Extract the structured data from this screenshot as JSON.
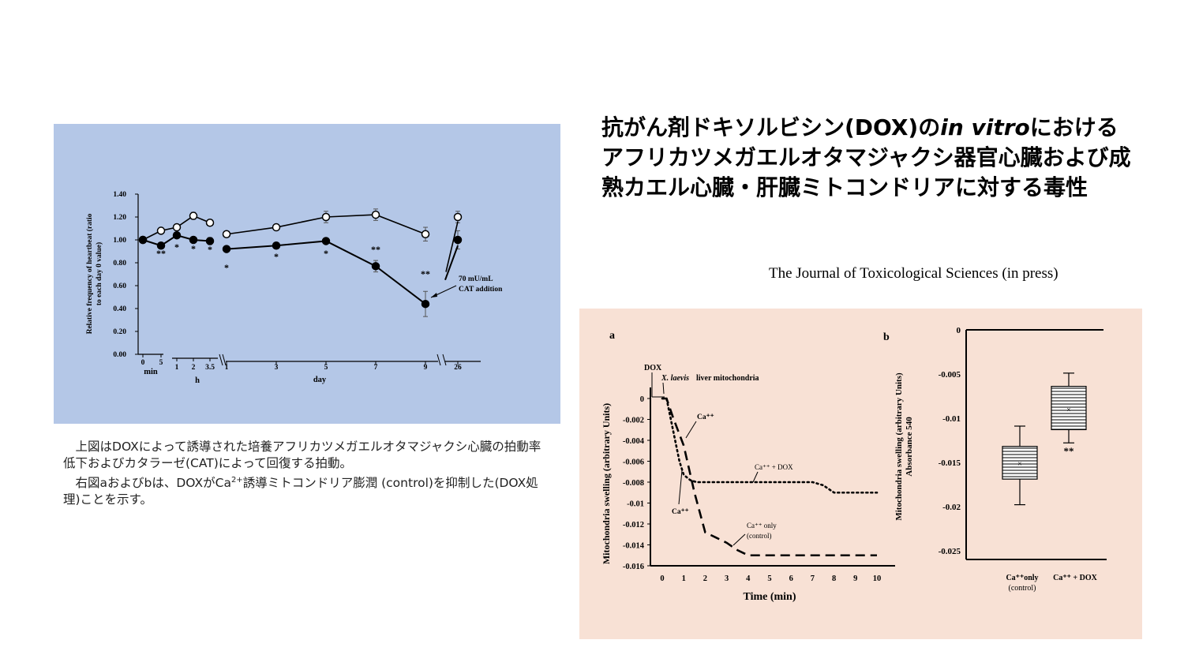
{
  "slide": {
    "title_part1": "抗がん剤ドキソルビシン(DOX)の",
    "title_italic": "in vitro",
    "title_part2": "における アフリカツメガエルオタマジャクシ器官心臓および成熟カエル心臓・肝臓ミトコンドリアに対する毒性",
    "journal": "The Journal of Toxicological Sciences (in press)",
    "caption_line1": "上図はDOXによって誘導された培養アフリカツメガエルオタマジャクシ心臓の拍動率低下およびカタラーゼ(CAT)によって回復する拍動。",
    "caption_line2_pre": "右図aおよびbは、DOXがCa",
    "caption_line2_sup": "2+",
    "caption_line2_post": "誘導ミトコンドリア膨潤 (control)を抑制した(DOX処理)ことを示す。"
  },
  "chart_data": [
    {
      "type": "line",
      "ylabel": "Relative frequency of heartbeat (ratio to each day 0 value)",
      "ylim": [
        0,
        1.4
      ],
      "yticks": [
        "0.00",
        "0.20",
        "0.40",
        "0.60",
        "0.80",
        "1.00",
        "1.20",
        "1.40"
      ],
      "x_groups": [
        {
          "label": "min",
          "ticks": [
            "0",
            "5"
          ]
        },
        {
          "label": "h",
          "ticks": [
            "1",
            "2",
            "3.5"
          ]
        },
        {
          "label": "day",
          "ticks": [
            "1",
            "3",
            "5",
            "7",
            "9"
          ]
        },
        {
          "label": "",
          "ticks": [
            "26"
          ]
        }
      ],
      "x": [
        "0 min",
        "5 min",
        "1 h",
        "2 h",
        "3.5 h",
        "1 day",
        "3 day",
        "5 day",
        "7 day",
        "9 day",
        "26 day"
      ],
      "series": [
        {
          "marker": "open",
          "values": [
            1.0,
            1.08,
            1.11,
            1.21,
            1.15,
            1.05,
            1.11,
            1.2,
            1.22,
            1.05,
            1.2
          ]
        },
        {
          "marker": "filled",
          "values": [
            1.0,
            0.95,
            1.04,
            1.0,
            0.99,
            0.92,
            0.95,
            0.99,
            0.77,
            0.44,
            1.0
          ]
        }
      ],
      "significance": [
        "",
        "**",
        "*",
        "*",
        "*",
        "*",
        "*",
        "*",
        "**",
        "**",
        ""
      ],
      "annotation": "70 mU/mL CAT addition"
    },
    {
      "type": "line",
      "panel": "a",
      "xlabel": "Time (min)",
      "ylabel": "Mitochondria swelling (arbitrary Units)",
      "xlim": [
        0,
        10
      ],
      "ylim": [
        -0.016,
        0
      ],
      "yticks": [
        "0",
        "-0.002",
        "-0.004",
        "-0.006",
        "-0.008",
        "-0.01",
        "-0.012",
        "-0.014",
        "-0.016"
      ],
      "xticks": [
        "0",
        "1",
        "2",
        "3",
        "4",
        "5",
        "6",
        "7",
        "8",
        "9",
        "10"
      ],
      "series": [
        {
          "name": "Ca⁺⁺ + DOX",
          "style": "dotted",
          "x": [
            0,
            0.2,
            0.5,
            0.8,
            1.0,
            1.3,
            1.6,
            2,
            3,
            4,
            5,
            6,
            7,
            7.5,
            8,
            9,
            10
          ],
          "values": [
            0,
            0,
            -0.003,
            -0.006,
            -0.0073,
            -0.0078,
            -0.008,
            -0.008,
            -0.008,
            -0.008,
            -0.008,
            -0.008,
            -0.008,
            -0.0083,
            -0.009,
            -0.009,
            -0.009
          ]
        },
        {
          "name": "Ca⁺⁺ only (control)",
          "style": "dashed",
          "x": [
            0,
            0.2,
            0.5,
            1.0,
            1.5,
            2,
            2.5,
            3,
            3.5,
            4,
            5,
            6,
            7,
            8,
            9,
            10
          ],
          "values": [
            0,
            0,
            -0.0018,
            -0.0045,
            -0.009,
            -0.0128,
            -0.0133,
            -0.0138,
            -0.0145,
            -0.015,
            -0.015,
            -0.015,
            -0.015,
            -0.015,
            -0.015,
            -0.015
          ]
        }
      ],
      "annotations": [
        "DOX",
        "X. laevis liver mitochondria",
        "Ca⁺⁺",
        "Ca⁺⁺ + DOX",
        "Ca⁺⁺",
        "Ca⁺⁺ only",
        "(control)"
      ]
    },
    {
      "type": "box",
      "panel": "b",
      "ylabel_line1": "Mitochondria swelling (arbitrary Units)",
      "ylabel_line2": "Absorbance 540",
      "ylim": [
        -0.026,
        0
      ],
      "yticks": [
        "0",
        "-0.005",
        "-0.01",
        "-0.015",
        "-0.02",
        "-0.025"
      ],
      "categories": [
        "Ca⁺⁺only (control)",
        "Ca⁺⁺ + DOX"
      ],
      "boxes": [
        {
          "min": -0.0198,
          "q1": -0.0169,
          "median": -0.0151,
          "mean": -0.0151,
          "q3": -0.0132,
          "max": -0.0109
        },
        {
          "min": -0.0128,
          "q1": -0.0113,
          "median": -0.009,
          "mean": -0.009,
          "q3": -0.0064,
          "max": -0.0049
        }
      ],
      "significance": [
        "",
        "**"
      ]
    }
  ]
}
